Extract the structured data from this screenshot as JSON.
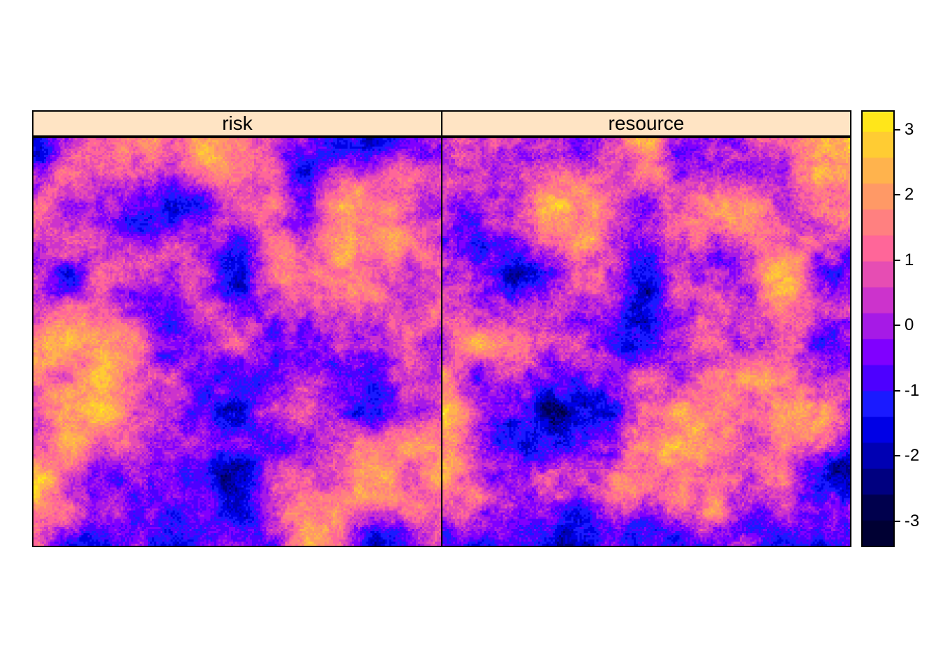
{
  "chart_data": {
    "type": "heatmap",
    "panels": [
      {
        "name": "risk",
        "label": "risk"
      },
      {
        "name": "resource",
        "label": "resource"
      }
    ],
    "colorkey": {
      "range": [
        -3.4,
        3.3
      ],
      "ticks": [
        "3",
        "2",
        "1",
        "0",
        "-1",
        "-2",
        "-3"
      ],
      "tick_values": [
        3,
        2,
        1,
        0,
        -1,
        -2,
        -3
      ],
      "levels": [
        -3.4,
        -3,
        -2.6,
        -2.2,
        -1.8,
        -1.4,
        -1.0,
        -0.6,
        -0.2,
        0.2,
        0.6,
        1.0,
        1.4,
        1.8,
        2.2,
        2.6,
        3.0,
        3.3
      ],
      "colors": [
        "#000033",
        "#00004d",
        "#000080",
        "#0000b3",
        "#0000e6",
        "#1a1aff",
        "#4d00ff",
        "#8000ff",
        "#a61ae6",
        "#cc33cc",
        "#e64db3",
        "#ff6699",
        "#ff8080",
        "#ff9966",
        "#ffb34d",
        "#ffcc33",
        "#ffe61a",
        "#ffff4d"
      ]
    },
    "strip_color": "#ffe4c4"
  }
}
